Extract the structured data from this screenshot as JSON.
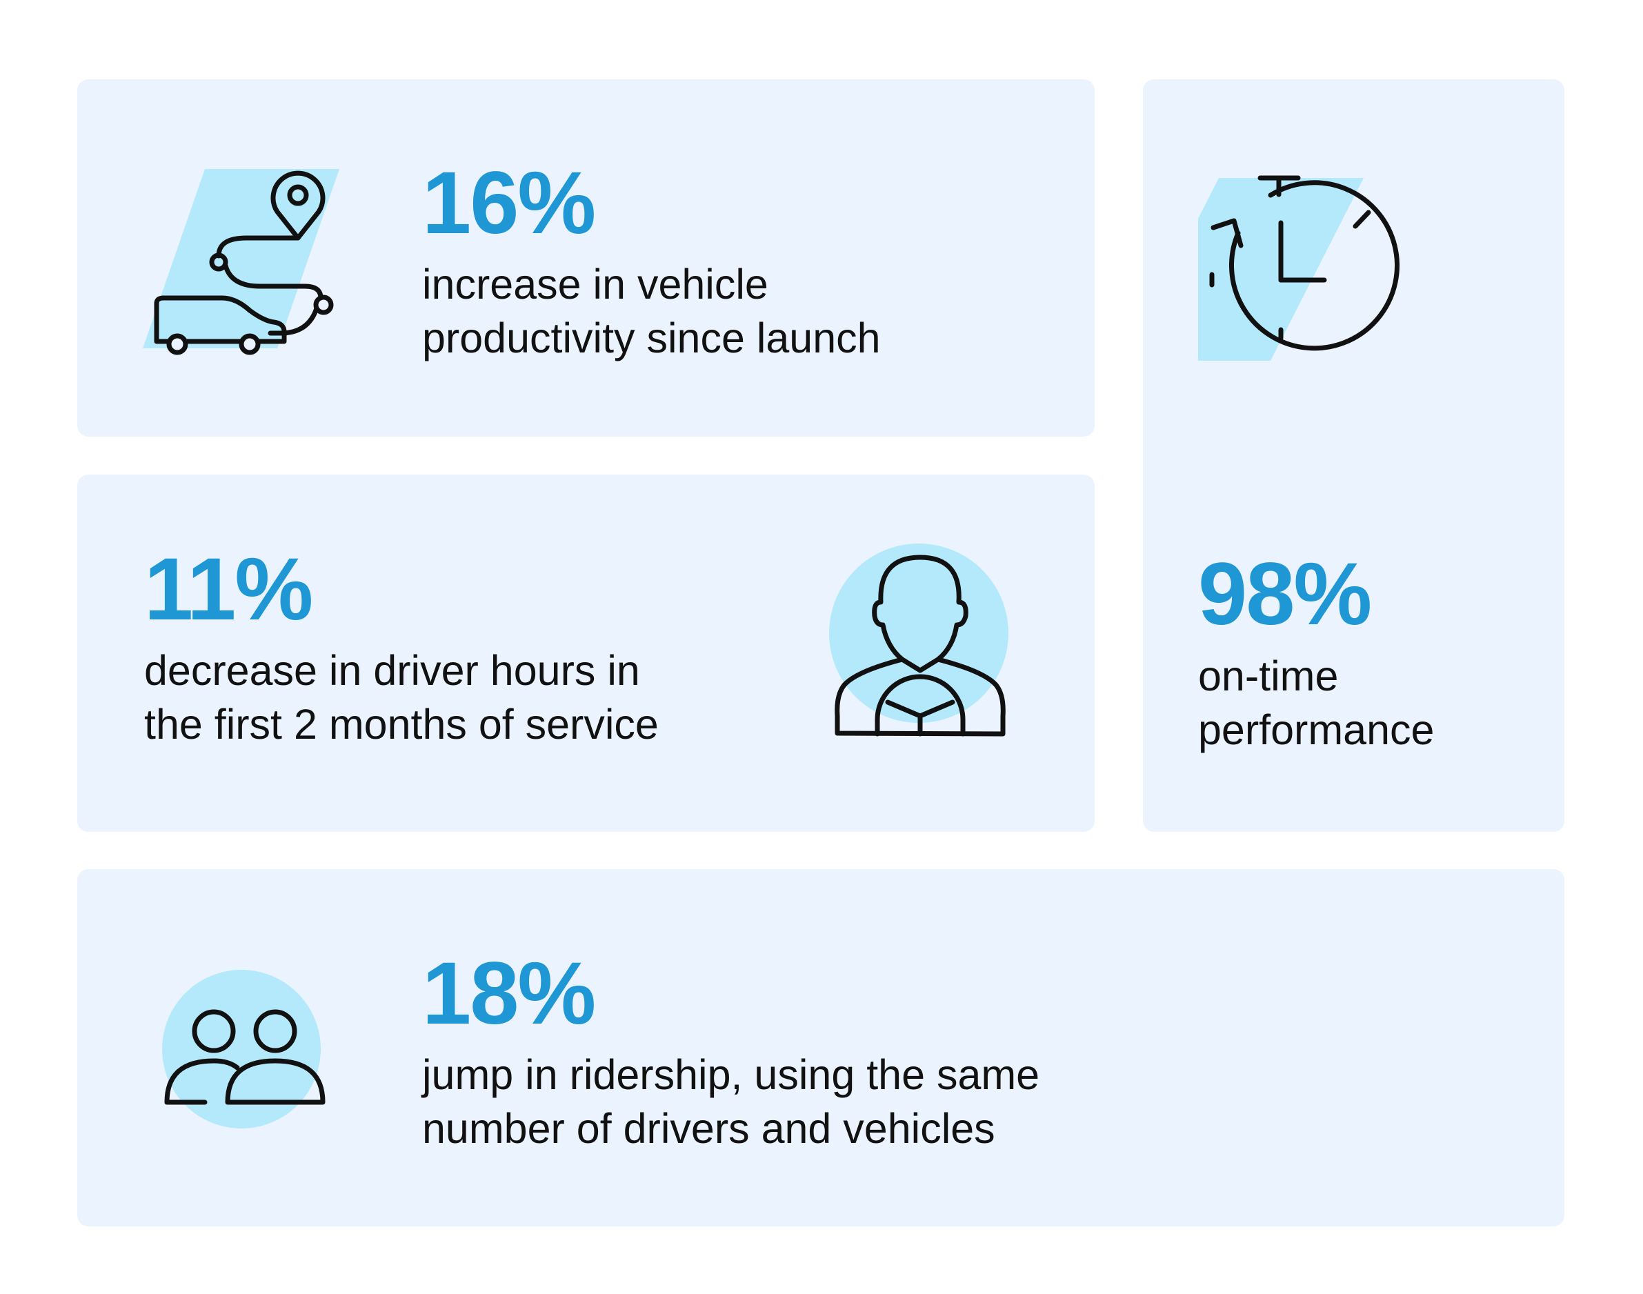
{
  "stats": [
    {
      "id": "vehicle",
      "value": "16%",
      "lines": [
        "increase in vehicle",
        "productivity since launch"
      ],
      "icon": "car-route-icon"
    },
    {
      "id": "driver",
      "value": "11%",
      "lines": [
        "decrease in driver hours in",
        "the first 2 months of service"
      ],
      "icon": "driver-steering-wheel-icon"
    },
    {
      "id": "ontime",
      "value": "98%",
      "lines": [
        "on-time",
        "performance"
      ],
      "icon": "stopwatch-icon"
    },
    {
      "id": "rider",
      "value": "18%",
      "lines": [
        "jump in ridership, using the same",
        "number of drivers and vehicles"
      ],
      "icon": "people-group-icon"
    }
  ],
  "colors": {
    "card_background": "#ebf4fe",
    "stat_value": "#1f97d4",
    "icon_accent": "#b3e9fb",
    "icon_stroke": "#111111",
    "text": "#111111"
  }
}
